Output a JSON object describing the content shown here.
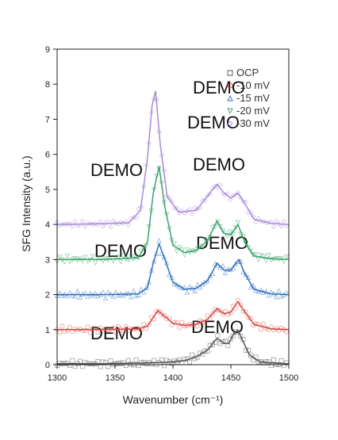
{
  "chart_data": {
    "type": "line",
    "xlabel": "Wavenumber (cm⁻¹)",
    "ylabel": "SFG Intensity (a.u.)",
    "xlim": [
      1300,
      1500
    ],
    "ylim": [
      0,
      9
    ],
    "x_ticks": [
      1300,
      1350,
      1400,
      1450,
      1500
    ],
    "y_ticks": [
      0,
      1,
      2,
      3,
      4,
      5,
      6,
      7,
      8,
      9
    ],
    "grid": false,
    "legend_position": "top-right",
    "watermark_text": "DEMO",
    "series": [
      {
        "name": "OCP",
        "color": "#555555",
        "marker": "square",
        "x": [
          1300,
          1320,
          1340,
          1360,
          1380,
          1400,
          1410,
          1420,
          1430,
          1438,
          1444,
          1448,
          1452,
          1456,
          1460,
          1466,
          1475,
          1490,
          1500
        ],
        "y": [
          0.03,
          0.03,
          0.03,
          0.04,
          0.05,
          0.08,
          0.12,
          0.22,
          0.42,
          0.75,
          0.62,
          0.6,
          0.85,
          0.98,
          0.7,
          0.28,
          0.08,
          0.04,
          0.03
        ]
      },
      {
        "name": "-10 mV",
        "color": "#d8473f",
        "marker": "circle",
        "x": [
          1300,
          1340,
          1370,
          1378,
          1383,
          1387,
          1392,
          1400,
          1410,
          1420,
          1430,
          1438,
          1444,
          1450,
          1456,
          1460,
          1470,
          1485,
          1500
        ],
        "y": [
          1.0,
          1.0,
          1.02,
          1.1,
          1.35,
          1.55,
          1.4,
          1.18,
          1.12,
          1.15,
          1.3,
          1.6,
          1.45,
          1.5,
          1.8,
          1.6,
          1.15,
          1.02,
          1.0
        ]
      },
      {
        "name": "-15 mV",
        "color": "#2f6fc0",
        "marker": "triangle-up",
        "x": [
          1300,
          1340,
          1370,
          1378,
          1383,
          1388,
          1393,
          1400,
          1410,
          1420,
          1430,
          1438,
          1444,
          1450,
          1457,
          1462,
          1470,
          1485,
          1500
        ],
        "y": [
          2.0,
          2.0,
          2.02,
          2.2,
          2.9,
          3.45,
          3.0,
          2.35,
          2.15,
          2.18,
          2.4,
          2.9,
          2.7,
          2.7,
          3.0,
          2.6,
          2.15,
          2.02,
          2.0
        ]
      },
      {
        "name": "-20 mV",
        "color": "#3aa36c",
        "marker": "triangle-down",
        "x": [
          1300,
          1340,
          1370,
          1378,
          1383,
          1388,
          1393,
          1400,
          1410,
          1420,
          1430,
          1438,
          1444,
          1450,
          1456,
          1462,
          1470,
          1485,
          1500
        ],
        "y": [
          3.0,
          3.0,
          3.05,
          3.5,
          4.9,
          5.65,
          4.5,
          3.4,
          3.2,
          3.25,
          3.55,
          4.1,
          3.75,
          3.7,
          4.0,
          3.5,
          3.1,
          3.02,
          3.0
        ]
      },
      {
        "name": "-30 mV",
        "color": "#a98ad8",
        "marker": "diamond",
        "x": [
          1300,
          1340,
          1362,
          1372,
          1378,
          1382,
          1385,
          1389,
          1395,
          1405,
          1420,
          1432,
          1438,
          1444,
          1450,
          1456,
          1462,
          1470,
          1485,
          1500
        ],
        "y": [
          4.0,
          4.02,
          4.05,
          4.4,
          5.9,
          7.4,
          7.8,
          6.3,
          4.8,
          4.35,
          4.4,
          4.9,
          5.15,
          4.9,
          4.75,
          4.9,
          4.6,
          4.15,
          4.03,
          4.0
        ]
      }
    ]
  }
}
